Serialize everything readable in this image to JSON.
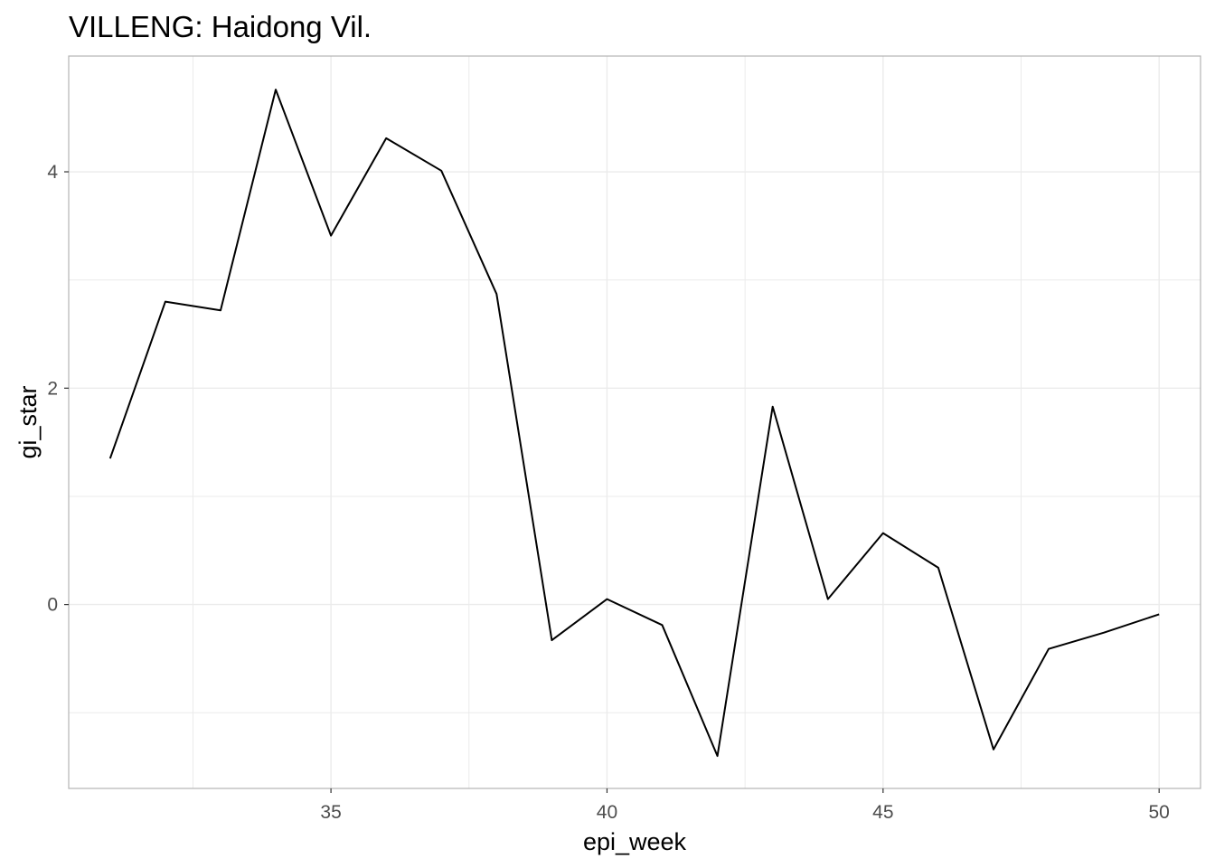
{
  "chart_data": {
    "type": "line",
    "title": "VILLENG: Haidong Vil.",
    "xlabel": "epi_week",
    "ylabel": "gi_star",
    "x": [
      31,
      32,
      33,
      34,
      35,
      36,
      37,
      38,
      39,
      40,
      41,
      42,
      43,
      44,
      45,
      46,
      47,
      48,
      49,
      50
    ],
    "series": [
      {
        "values": [
          1.35,
          2.8,
          2.72,
          4.76,
          3.41,
          4.31,
          4.01,
          2.87,
          -0.33,
          0.05,
          -0.19,
          -1.4,
          1.83,
          0.05,
          0.66,
          0.34,
          -1.34,
          -0.41,
          -0.26,
          -0.09
        ],
        "color": "#000000"
      }
    ],
    "xlim": [
      30.25,
      50.75
    ],
    "ylim": [
      -1.7,
      5.07
    ],
    "x_ticks": [
      35,
      40,
      45,
      50
    ],
    "x_tick_labels": [
      "35",
      "40",
      "45",
      "50"
    ],
    "y_ticks": [
      0,
      2,
      4
    ],
    "y_tick_labels": [
      "0",
      "2",
      "4"
    ],
    "x_minor_ticks": [
      32.5,
      37.5,
      42.5,
      47.5
    ],
    "y_minor_ticks": [
      -1,
      1,
      3
    ],
    "grid": true,
    "legend": "none",
    "colors": {
      "grid": "#ebebeb",
      "border": "#b3b3b3",
      "line": "#000000"
    }
  }
}
